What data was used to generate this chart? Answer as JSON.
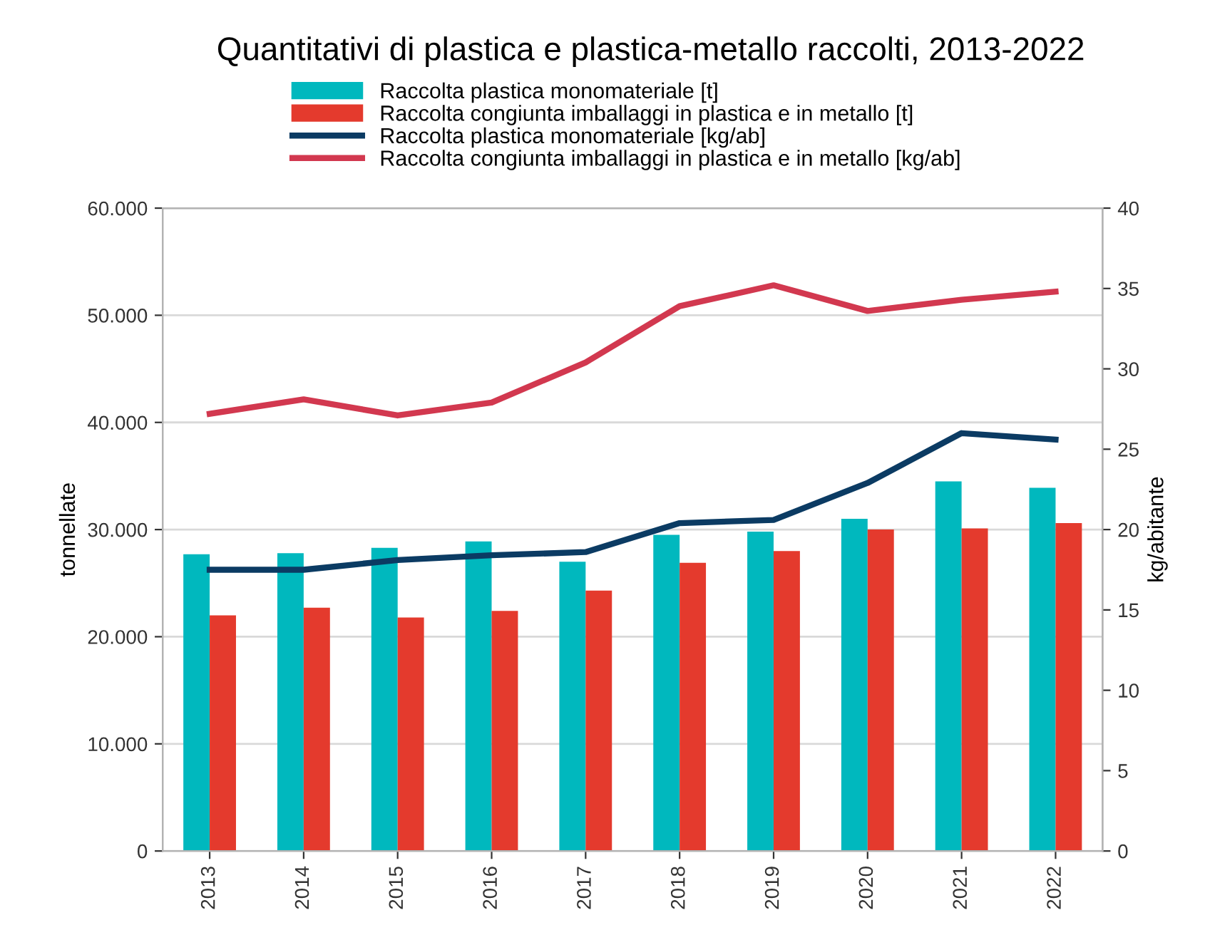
{
  "chart_data": {
    "type": "bar",
    "title": "Quantitativi di plastica e plastica-metallo raccolti, 2013-2022",
    "ylabel": "tonnellate",
    "y2label": "kg/abitante",
    "categories": [
      "2013",
      "2014",
      "2015",
      "2016",
      "2017",
      "2018",
      "2019",
      "2020",
      "2021",
      "2022"
    ],
    "series": [
      {
        "name": "Raccolta plastica monomateriale [t]",
        "color": "#00b8be",
        "values": [
          27700,
          27800,
          28300,
          28900,
          27000,
          29500,
          29800,
          31000,
          34500,
          33900
        ]
      },
      {
        "name": "Raccolta congiunta imballaggi in plastica e in metallo [t]",
        "color": "#e43a2d",
        "values": [
          22000,
          22700,
          21800,
          22400,
          24300,
          26900,
          28000,
          30000,
          30100,
          30600
        ]
      },
      {
        "name": "Raccolta plastica monomateriale [kg/ab]",
        "type": "line",
        "axis": "y2",
        "color": "#0b3b63",
        "values": [
          17.5,
          17.5,
          18.1,
          18.4,
          18.6,
          20.4,
          20.6,
          22.9,
          26.0,
          25.6
        ]
      },
      {
        "name": "Raccolta congiunta imballaggi in plastica e in metallo [kg/ab]",
        "type": "line",
        "axis": "y2",
        "color": "#d2384f",
        "values": [
          27.2,
          28.1,
          27.1,
          27.9,
          30.4,
          33.9,
          35.2,
          33.6,
          34.3,
          34.8
        ]
      }
    ],
    "ylim": [
      0,
      60000
    ],
    "yticks": [
      {
        "value": 0,
        "label": "0"
      },
      {
        "value": 10000,
        "label": "10.000"
      },
      {
        "value": 20000,
        "label": "20.000"
      },
      {
        "value": 30000,
        "label": "30.000"
      },
      {
        "value": 40000,
        "label": "40.000"
      },
      {
        "value": 50000,
        "label": "50.000"
      },
      {
        "value": 60000,
        "label": "60.000"
      }
    ],
    "y2lim": [
      0,
      40
    ],
    "y2ticks": [
      0,
      5,
      10,
      15,
      20,
      25,
      30,
      35,
      40
    ],
    "grid": "y",
    "legend": "top",
    "marker": "none",
    "line_style": "solid"
  }
}
